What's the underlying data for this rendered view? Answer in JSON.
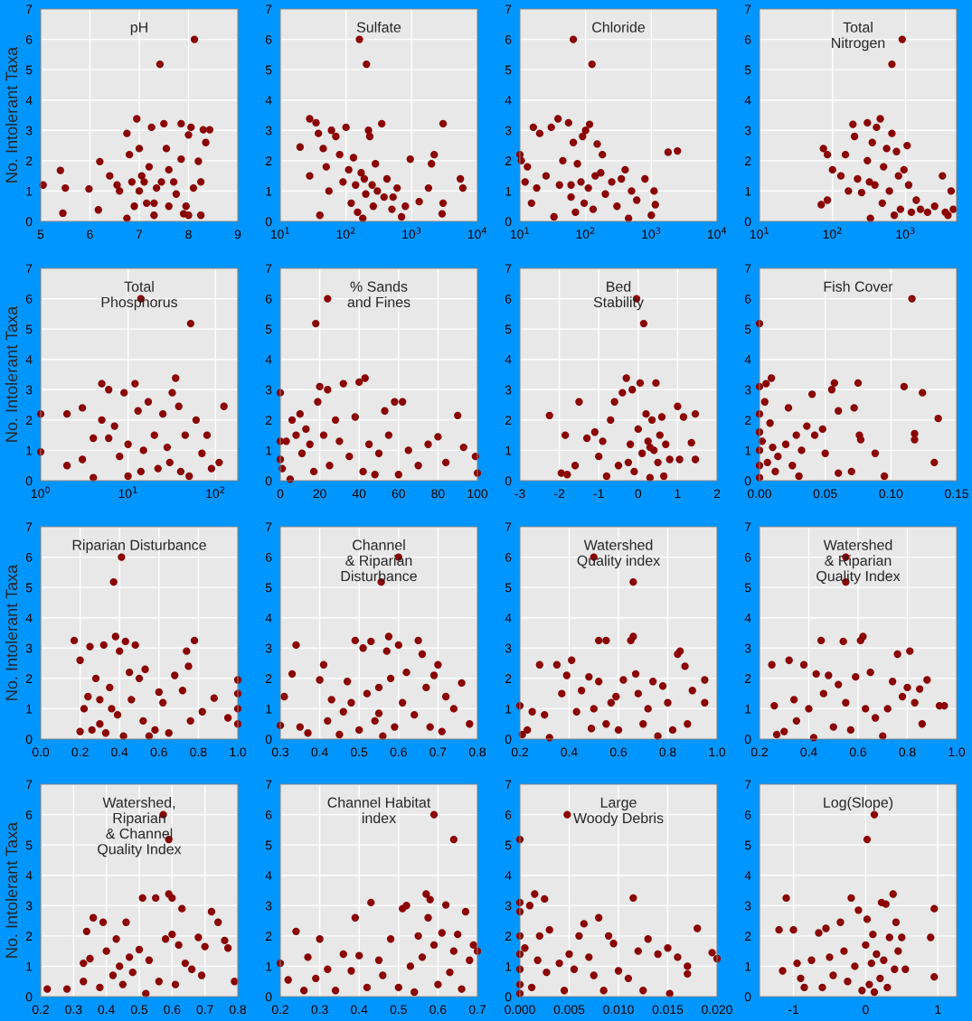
{
  "chart_data": [
    {
      "type": "scatter",
      "title": "pH",
      "ylabel": "No. Intolerant Taxa",
      "marker": "circle",
      "grid": true,
      "xlim": [
        5,
        9
      ],
      "xticks": [
        5,
        6,
        7,
        8,
        9
      ],
      "ylim": [
        0,
        7
      ],
      "yticks": [
        0,
        1,
        2,
        3,
        4,
        5,
        6,
        7
      ],
      "series": [
        {
          "color": "#8b0000",
          "x": [
            8.12,
            7.42,
            5.05,
            5.4,
            5.45,
            5.5,
            5.98,
            6.2,
            6.17,
            6.4,
            6.55,
            6.6,
            6.75,
            6.8,
            6.85,
            6.75,
            6.95,
            7.0,
            7.05,
            7.1,
            7.15,
            7.2,
            7.25,
            7.3,
            7.35,
            7.45,
            7.5,
            7.55,
            7.6,
            7.7,
            7.75,
            7.85,
            7.85,
            7.9,
            7.95,
            8.0,
            8.05,
            8.1,
            8.2,
            8.25,
            8.3,
            8.43,
            8.35,
            8.0,
            7.3,
            7.0,
            6.9,
            7.6,
            8.25
          ],
          "values": [
            6,
            5.18,
            1.2,
            1.68,
            0.27,
            1.1,
            1.07,
            1.97,
            0.38,
            1.5,
            1.2,
            1.0,
            2.9,
            2.2,
            1.3,
            0.1,
            3.38,
            2.4,
            1.5,
            1.3,
            0.6,
            1.8,
            3.1,
            0.2,
            1.1,
            1.3,
            3.22,
            2.4,
            0.5,
            1.3,
            0.9,
            3.22,
            2.05,
            0.25,
            0.5,
            2.85,
            3.1,
            1.1,
            1.98,
            0.2,
            3.02,
            3.02,
            2.6,
            0.2,
            0.6,
            1.0,
            0.5,
            1.7,
            1.3
          ]
        }
      ]
    },
    {
      "type": "scatter",
      "title": "Sulfate",
      "marker": "circle",
      "grid": true,
      "log": "x",
      "xlim": [
        10,
        10000
      ],
      "xticks": [
        {
          "value": 10,
          "label": "10$^{1}$"
        },
        {
          "value": 100,
          "label": "10$^{2}$"
        },
        {
          "value": 1000,
          "label": "10$^{3}$"
        },
        {
          "value": 10000,
          "label": "10$^{4}$"
        }
      ],
      "ylim": [
        0,
        7
      ],
      "yticks": [
        0,
        1,
        2,
        3,
        4,
        5,
        6,
        7
      ],
      "series": [
        {
          "color": "#8b0000",
          "x": [
            160,
            205,
            20,
            28,
            28,
            35,
            38,
            40,
            45,
            50,
            55,
            60,
            70,
            80,
            90,
            100,
            110,
            120,
            130,
            140,
            150,
            170,
            190,
            200,
            220,
            230,
            250,
            260,
            280,
            300,
            350,
            380,
            420,
            500,
            600,
            700,
            800,
            950,
            1300,
            1800,
            2000,
            2200,
            3000,
            3000,
            2900,
            5500,
            6000,
            520,
            180
          ],
          "values": [
            6,
            5.18,
            2.45,
            3.38,
            1.5,
            3.25,
            2.9,
            0.2,
            2.4,
            1.8,
            1.0,
            3.0,
            2.8,
            2.2,
            1.3,
            3.1,
            1.7,
            0.6,
            2.1,
            1.2,
            0.3,
            1.6,
            1.4,
            0.9,
            3.0,
            2.8,
            1.2,
            0.5,
            1.9,
            1.0,
            3.22,
            0.8,
            1.4,
            0.4,
            1.1,
            0.15,
            0.5,
            2.05,
            0.65,
            1.1,
            1.9,
            2.2,
            3.22,
            0.6,
            0.25,
            1.4,
            1.1,
            0.8,
            0.1
          ]
        }
      ]
    },
    {
      "type": "scatter",
      "title": "Chloride",
      "marker": "circle",
      "grid": true,
      "log": "x",
      "xlim": [
        10,
        10000
      ],
      "xticks": [
        {
          "value": 10,
          "label": "10$^{1}$"
        },
        {
          "value": 100,
          "label": "10$^{2}$"
        },
        {
          "value": 1000,
          "label": "10$^{3}$"
        },
        {
          "value": 10000,
          "label": "10$^{4}$"
        }
      ],
      "ylim": [
        0,
        7
      ],
      "yticks": [
        0,
        1,
        2,
        3,
        4,
        5,
        6,
        7
      ],
      "series": [
        {
          "color": "#8b0000",
          "x": [
            65,
            125,
            10,
            10.5,
            12,
            13,
            15,
            16,
            18,
            20,
            25,
            30,
            33,
            38,
            40,
            45,
            55,
            60,
            65,
            70,
            75,
            85,
            90,
            95,
            100,
            110,
            115,
            130,
            150,
            170,
            180,
            200,
            250,
            300,
            350,
            400,
            450,
            500,
            600,
            800,
            1000,
            1100,
            1150,
            1800,
            2500,
            140,
            60
          ],
          "values": [
            6,
            5.18,
            2.2,
            2.0,
            1.3,
            1.8,
            0.6,
            3.1,
            1.1,
            2.9,
            1.5,
            3.1,
            0.15,
            3.38,
            1.2,
            2.0,
            3.25,
            1.2,
            2.6,
            0.3,
            1.9,
            1.3,
            2.8,
            0.6,
            3.0,
            1.1,
            3.2,
            0.4,
            2.55,
            1.6,
            2.2,
            0.9,
            1.3,
            0.5,
            1.4,
            1.7,
            0.1,
            1.0,
            0.7,
            1.4,
            0.2,
            1.0,
            0.55,
            2.28,
            2.32,
            1.5,
            0.8
          ]
        }
      ]
    },
    {
      "type": "scatter",
      "title": "Total\nNitrogen",
      "marker": "circle",
      "grid": true,
      "log": "x",
      "xlim": [
        10,
        5000
      ],
      "xticks": [
        {
          "value": 10,
          "label": "10$^{1}$"
        },
        {
          "value": 100,
          "label": "10$^{2}$"
        },
        {
          "value": 1000,
          "label": "10$^{3}$"
        }
      ],
      "ylim": [
        0,
        7
      ],
      "yticks": [
        0,
        1,
        2,
        3,
        4,
        5,
        6,
        7
      ],
      "series": [
        {
          "color": "#8b0000",
          "x": [
            900,
            650,
            70,
            75,
            85,
            85,
            100,
            130,
            150,
            165,
            190,
            200,
            220,
            250,
            300,
            300,
            320,
            330,
            350,
            380,
            400,
            450,
            480,
            500,
            550,
            600,
            650,
            700,
            750,
            800,
            850,
            950,
            1050,
            1100,
            1200,
            1400,
            1600,
            2000,
            2500,
            3200,
            3500,
            4200,
            4500,
            3800
          ],
          "values": [
            6,
            5.18,
            0.55,
            2.4,
            2.2,
            0.7,
            1.7,
            1.5,
            2.2,
            1.0,
            3.2,
            2.8,
            1.4,
            0.95,
            3.25,
            2.0,
            1.3,
            0.1,
            2.6,
            1.2,
            3.1,
            3.38,
            0.6,
            1.8,
            2.4,
            1.0,
            2.9,
            0.2,
            2.3,
            1.5,
            0.4,
            1.7,
            2.5,
            1.2,
            0.3,
            0.7,
            0.4,
            0.3,
            0.5,
            1.5,
            0.3,
            1.0,
            0.4,
            0.2
          ]
        }
      ]
    },
    {
      "type": "scatter",
      "title": "Total\nPhosphorus",
      "ylabel": "No. Intolerant Taxa",
      "marker": "circle",
      "grid": true,
      "log": "x",
      "xlim": [
        1,
        180
      ],
      "xticks": [
        {
          "value": 1,
          "label": "10$^{0}$"
        },
        {
          "value": 10,
          "label": "10$^{1}$"
        },
        {
          "value": 100,
          "label": "10$^{2}$"
        }
      ],
      "ylim": [
        0,
        7
      ],
      "yticks": [
        0,
        1,
        2,
        3,
        4,
        5,
        6,
        7
      ],
      "series": [
        {
          "color": "#8b0000",
          "x": [
            14,
            52,
            1,
            1,
            2,
            2,
            3,
            3,
            4,
            4,
            5,
            5,
            6,
            6,
            7,
            8,
            9,
            10,
            10,
            12,
            13,
            14,
            15,
            17,
            20,
            22,
            25,
            28,
            32,
            35,
            38,
            40,
            45,
            50,
            60,
            70,
            80,
            90,
            110,
            125,
            30
          ],
          "values": [
            6,
            5.18,
            2.2,
            0.95,
            2.2,
            0.5,
            2.4,
            0.7,
            1.4,
            0.1,
            3.2,
            2.0,
            3.0,
            1.4,
            1.8,
            0.8,
            2.9,
            1.2,
            0.15,
            3.2,
            2.3,
            0.3,
            1.0,
            2.6,
            1.5,
            0.4,
            2.2,
            1.1,
            2.9,
            3.38,
            2.45,
            0.3,
            1.5,
            0.15,
            2.0,
            0.9,
            1.5,
            0.4,
            0.6,
            2.45,
            0.6
          ]
        }
      ]
    },
    {
      "type": "scatter",
      "title": "% Sands\nand Fines",
      "marker": "circle",
      "grid": true,
      "xlim": [
        0,
        100
      ],
      "xticks": [
        0,
        20,
        40,
        60,
        80,
        100
      ],
      "ylim": [
        0,
        7
      ],
      "yticks": [
        0,
        1,
        2,
        3,
        4,
        5,
        6,
        7
      ],
      "series": [
        {
          "color": "#8b0000",
          "x": [
            24,
            18,
            0,
            0,
            0,
            1,
            3,
            5,
            6,
            8,
            10,
            11,
            13,
            15,
            17,
            19,
            20,
            22,
            24,
            25,
            28,
            30,
            32,
            35,
            38,
            40,
            43,
            45,
            48,
            50,
            53,
            55,
            58,
            60,
            62,
            65,
            70,
            75,
            80,
            84,
            90,
            93,
            99,
            100,
            42
          ],
          "values": [
            6,
            5.18,
            2.9,
            1.3,
            0.7,
            0.4,
            1.3,
            0.05,
            2.0,
            1.5,
            2.2,
            0.9,
            1.7,
            1.2,
            0.3,
            2.6,
            3.1,
            1.5,
            3.0,
            0.5,
            2.0,
            1.3,
            3.2,
            0.8,
            2.1,
            3.25,
            3.38,
            1.2,
            0.2,
            0.9,
            2.3,
            1.5,
            2.6,
            0.2,
            2.6,
            1.0,
            0.5,
            1.2,
            1.45,
            0.6,
            2.15,
            1.1,
            0.8,
            0.25,
            0.3
          ]
        }
      ]
    },
    {
      "type": "scatter",
      "title": "Bed\nStability",
      "marker": "circle",
      "grid": true,
      "xlim": [
        -3,
        2
      ],
      "xticks": [
        -3,
        -2,
        -1,
        0,
        1,
        2
      ],
      "ylim": [
        0,
        7
      ],
      "yticks": [
        0,
        1,
        2,
        3,
        4,
        5,
        6,
        7
      ],
      "series": [
        {
          "color": "#8b0000",
          "x": [
            -0.04,
            0.14,
            -2.25,
            -1.95,
            -1.85,
            -1.8,
            -1.6,
            -1.5,
            -1.3,
            -1.1,
            -1.0,
            -0.9,
            -0.8,
            -0.7,
            -0.6,
            -0.5,
            -0.4,
            -0.3,
            -0.2,
            -0.15,
            -0.1,
            0,
            0.05,
            0.1,
            0.2,
            0.25,
            0.3,
            0.35,
            0.4,
            0.45,
            0.5,
            0.55,
            0.6,
            0.65,
            0.7,
            0.8,
            1.0,
            1.05,
            1.15,
            1.35,
            1.45,
            1.45,
            -0.25,
            0.3
          ],
          "values": [
            6,
            5.18,
            2.15,
            0.25,
            1.5,
            0.2,
            0.5,
            2.6,
            1.4,
            1.6,
            0.8,
            1.3,
            0.15,
            2.0,
            2.6,
            0.5,
            2.9,
            3.38,
            1.2,
            3.0,
            0.3,
            1.7,
            3.22,
            0.9,
            2.2,
            1.3,
            0.1,
            2.0,
            1.0,
            3.22,
            0.6,
            1.5,
            2.1,
            0.15,
            1.2,
            0.7,
            2.45,
            0.7,
            2.1,
            1.25,
            2.2,
            0.7,
            0.6,
            1.1
          ]
        }
      ]
    },
    {
      "type": "scatter",
      "title": "Fish Cover",
      "marker": "circle",
      "grid": true,
      "xlim": [
        0,
        0.15
      ],
      "xticks": [
        {
          "value": 0,
          "label": "0.00"
        },
        {
          "value": 0.05,
          "label": "0.05"
        },
        {
          "value": 0.1,
          "label": "0.10"
        },
        {
          "value": 0.15,
          "label": "0.15"
        }
      ],
      "ylim": [
        0,
        7
      ],
      "yticks": [
        0,
        1,
        2,
        3,
        4,
        5,
        6,
        7
      ],
      "series": [
        {
          "color": "#8b0000",
          "x": [
            0.116,
            0,
            0,
            0,
            0,
            0,
            0,
            0,
            0.002,
            0.004,
            0.005,
            0.006,
            0.008,
            0.009,
            0.01,
            0.012,
            0.014,
            0.02,
            0.022,
            0.025,
            0.028,
            0.03,
            0.032,
            0.036,
            0.04,
            0.042,
            0.048,
            0.05,
            0.055,
            0.057,
            0.06,
            0.06,
            0.07,
            0.072,
            0.075,
            0.076,
            0.077,
            0.088,
            0.095,
            0.11,
            0.118,
            0.124,
            0.133,
            0.136,
            0.118
          ],
          "values": [
            6,
            5.18,
            3.1,
            2.2,
            1.6,
            1.0,
            0.5,
            0.1,
            1.3,
            2.6,
            3.2,
            0.6,
            1.9,
            3.38,
            1.1,
            0.3,
            0.8,
            1.2,
            2.4,
            0.5,
            1.5,
            0.15,
            1.0,
            1.8,
            2.85,
            1.5,
            1.7,
            0.9,
            3.0,
            3.22,
            2.3,
            0.25,
            0.3,
            2.4,
            3.22,
            1.5,
            1.35,
            0.9,
            0.15,
            3.1,
            1.55,
            2.9,
            0.6,
            2.05,
            1.35
          ]
        }
      ]
    },
    {
      "type": "scatter",
      "title": "Riparian Disturbance",
      "ylabel": "No. Intolerant Taxa",
      "marker": "circle",
      "grid": true,
      "xlim": [
        0,
        1
      ],
      "xticks": [
        {
          "value": 0,
          "label": "0.0"
        },
        {
          "value": 0.2,
          "label": "0.2"
        },
        {
          "value": 0.4,
          "label": "0.4"
        },
        {
          "value": 0.6,
          "label": "0.6"
        },
        {
          "value": 0.8,
          "label": "0.8"
        },
        {
          "value": 1,
          "label": "1.0"
        }
      ],
      "ylim": [
        0,
        7
      ],
      "yticks": [
        0,
        1,
        2,
        3,
        4,
        5,
        6,
        7
      ],
      "series": [
        {
          "color": "#8b0000",
          "x": [
            0.41,
            0.37,
            0.17,
            0.2,
            0.2,
            0.22,
            0.24,
            0.25,
            0.26,
            0.28,
            0.3,
            0.32,
            0.33,
            0.35,
            0.38,
            0.39,
            0.4,
            0.42,
            0.43,
            0.45,
            0.46,
            0.48,
            0.5,
            0.52,
            0.53,
            0.55,
            0.58,
            0.6,
            0.62,
            0.65,
            0.68,
            0.72,
            0.74,
            0.75,
            0.76,
            0.78,
            0.82,
            0.88,
            0.95,
            1.0,
            1.0,
            1.0,
            1.0,
            0.36,
            0.3
          ],
          "values": [
            6,
            5.18,
            3.25,
            0.25,
            2.6,
            1.0,
            1.4,
            3.05,
            0.3,
            2.0,
            1.3,
            3.1,
            0.2,
            1.7,
            3.38,
            0.8,
            2.9,
            0.1,
            3.22,
            2.2,
            1.3,
            3.1,
            2.0,
            0.6,
            2.3,
            0.1,
            0.3,
            1.55,
            1.2,
            0.2,
            2.1,
            1.6,
            2.9,
            2.4,
            0.6,
            3.25,
            0.9,
            1.35,
            0.7,
            1.95,
            1.5,
            1.0,
            0.5,
            1.0,
            0.5
          ]
        }
      ]
    },
    {
      "type": "scatter",
      "title": "Channel\n& Riparian\nDisturbance",
      "marker": "circle",
      "grid": true,
      "xlim": [
        0.3,
        0.8
      ],
      "xticks": [
        {
          "value": 0.3,
          "label": "0.3"
        },
        {
          "value": 0.4,
          "label": "0.4"
        },
        {
          "value": 0.5,
          "label": "0.5"
        },
        {
          "value": 0.6,
          "label": "0.6"
        },
        {
          "value": 0.7,
          "label": "0.7"
        },
        {
          "value": 0.8,
          "label": "0.8"
        }
      ],
      "ylim": [
        0,
        7
      ],
      "yticks": [
        0,
        1,
        2,
        3,
        4,
        5,
        6,
        7
      ],
      "series": [
        {
          "color": "#8b0000",
          "x": [
            0.6,
            0.556,
            0.3,
            0.31,
            0.33,
            0.34,
            0.35,
            0.37,
            0.4,
            0.41,
            0.42,
            0.43,
            0.45,
            0.46,
            0.47,
            0.48,
            0.49,
            0.5,
            0.51,
            0.52,
            0.53,
            0.54,
            0.55,
            0.56,
            0.57,
            0.575,
            0.58,
            0.59,
            0.6,
            0.61,
            0.62,
            0.64,
            0.65,
            0.66,
            0.67,
            0.68,
            0.69,
            0.7,
            0.71,
            0.72,
            0.74,
            0.76,
            0.78,
            0.55
          ],
          "values": [
            6,
            5.18,
            0.45,
            1.4,
            2.15,
            3.1,
            0.4,
            0.2,
            1.95,
            2.45,
            0.6,
            1.3,
            0.15,
            0.9,
            1.9,
            1.2,
            3.25,
            0.3,
            3.0,
            1.5,
            3.22,
            0.6,
            1.7,
            0.1,
            2.9,
            3.38,
            2.0,
            0.4,
            3.1,
            1.2,
            2.2,
            0.8,
            3.25,
            2.8,
            1.7,
            0.4,
            2.1,
            2.45,
            0.25,
            1.4,
            1.0,
            1.85,
            0.5,
            0.85
          ]
        }
      ]
    },
    {
      "type": "scatter",
      "title": "Watershed\nQuality index",
      "marker": "circle",
      "grid": true,
      "xlim": [
        0.2,
        1
      ],
      "xticks": [
        {
          "value": 0.2,
          "label": "0.2"
        },
        {
          "value": 0.4,
          "label": "0.4"
        },
        {
          "value": 0.6,
          "label": "0.6"
        },
        {
          "value": 0.8,
          "label": "0.8"
        },
        {
          "value": 1,
          "label": "1.0"
        }
      ],
      "ylim": [
        0,
        7
      ],
      "yticks": [
        0,
        1,
        2,
        3,
        4,
        5,
        6,
        7
      ],
      "series": [
        {
          "color": "#8b0000",
          "x": [
            0.5,
            0.66,
            0.2,
            0.21,
            0.23,
            0.25,
            0.28,
            0.3,
            0.32,
            0.35,
            0.37,
            0.39,
            0.41,
            0.43,
            0.45,
            0.48,
            0.49,
            0.5,
            0.52,
            0.52,
            0.55,
            0.55,
            0.57,
            0.59,
            0.6,
            0.62,
            0.65,
            0.66,
            0.67,
            0.68,
            0.7,
            0.72,
            0.74,
            0.76,
            0.78,
            0.8,
            0.82,
            0.84,
            0.85,
            0.87,
            0.88,
            0.9,
            0.95,
            0.95
          ],
          "values": [
            6,
            5.18,
            1.1,
            0.15,
            0.3,
            0.9,
            2.45,
            0.8,
            0.05,
            2.45,
            1.5,
            2.1,
            2.6,
            0.9,
            1.6,
            2.05,
            0.35,
            1.0,
            1.9,
            3.25,
            3.25,
            0.5,
            1.2,
            1.4,
            0.3,
            1.95,
            3.25,
            3.38,
            2.15,
            1.5,
            0.5,
            1.0,
            1.9,
            0.1,
            1.75,
            1.2,
            0.3,
            2.8,
            2.9,
            2.4,
            0.5,
            1.6,
            1.95,
            1.2
          ]
        }
      ]
    },
    {
      "type": "scatter",
      "title": "Watershed\n& Riparian\nQuality Index",
      "marker": "circle",
      "grid": true,
      "xlim": [
        0.2,
        1
      ],
      "xticks": [
        {
          "value": 0.2,
          "label": "0.2"
        },
        {
          "value": 0.4,
          "label": "0.4"
        },
        {
          "value": 0.6,
          "label": "0.6"
        },
        {
          "value": 0.8,
          "label": "0.8"
        },
        {
          "value": 1,
          "label": "1.0"
        }
      ],
      "ylim": [
        0,
        7
      ],
      "yticks": [
        0,
        1,
        2,
        3,
        4,
        5,
        6,
        7
      ],
      "series": [
        {
          "color": "#8b0000",
          "x": [
            0.55,
            0.55,
            0.25,
            0.26,
            0.27,
            0.3,
            0.32,
            0.34,
            0.35,
            0.38,
            0.4,
            0.42,
            0.43,
            0.45,
            0.46,
            0.48,
            0.5,
            0.52,
            0.54,
            0.55,
            0.57,
            0.59,
            0.61,
            0.62,
            0.63,
            0.65,
            0.67,
            0.7,
            0.72,
            0.74,
            0.76,
            0.78,
            0.8,
            0.81,
            0.83,
            0.85,
            0.86,
            0.88,
            0.93,
            0.95
          ],
          "values": [
            6,
            5.18,
            2.45,
            1.1,
            0.15,
            0.25,
            2.6,
            1.3,
            0.6,
            2.45,
            1.0,
            0.05,
            2.15,
            3.25,
            1.5,
            2.1,
            0.4,
            1.8,
            3.22,
            1.2,
            0.3,
            2.05,
            3.25,
            3.38,
            1.0,
            2.2,
            0.7,
            0.1,
            1.0,
            1.9,
            2.8,
            1.4,
            1.7,
            2.9,
            1.2,
            1.65,
            0.5,
            1.95,
            1.1,
            1.1
          ]
        }
      ]
    },
    {
      "type": "scatter",
      "title": "Watershed,\nRiparian\n& Channel\nQuality Index",
      "ylabel": "No. Intolerant Taxa",
      "marker": "circle",
      "grid": true,
      "xlim": [
        0.2,
        0.8
      ],
      "xticks": [
        {
          "value": 0.2,
          "label": "0.2"
        },
        {
          "value": 0.3,
          "label": "0.3"
        },
        {
          "value": 0.4,
          "label": "0.4"
        },
        {
          "value": 0.5,
          "label": "0.5"
        },
        {
          "value": 0.6,
          "label": "0.6"
        },
        {
          "value": 0.7,
          "label": "0.7"
        },
        {
          "value": 0.8,
          "label": "0.8"
        }
      ],
      "ylim": [
        0,
        7
      ],
      "yticks": [
        0,
        1,
        2,
        3,
        4,
        5,
        6,
        7
      ],
      "series": [
        {
          "color": "#8b0000",
          "x": [
            0.573,
            0.59,
            0.22,
            0.28,
            0.33,
            0.33,
            0.34,
            0.35,
            0.36,
            0.38,
            0.39,
            0.4,
            0.42,
            0.43,
            0.44,
            0.45,
            0.46,
            0.47,
            0.48,
            0.5,
            0.51,
            0.52,
            0.53,
            0.55,
            0.56,
            0.58,
            0.59,
            0.6,
            0.6,
            0.61,
            0.62,
            0.63,
            0.64,
            0.66,
            0.68,
            0.69,
            0.7,
            0.72,
            0.74,
            0.76,
            0.77,
            0.79
          ],
          "values": [
            6,
            5.18,
            0.25,
            0.25,
            1.1,
            0.5,
            2.15,
            1.25,
            2.6,
            0.3,
            2.45,
            1.5,
            0.7,
            1.9,
            1.0,
            0.4,
            2.45,
            1.3,
            0.8,
            1.55,
            3.25,
            0.1,
            1.2,
            3.25,
            0.5,
            1.9,
            3.38,
            2.05,
            3.25,
            0.4,
            1.7,
            2.9,
            1.1,
            0.9,
            1.95,
            0.7,
            1.65,
            2.8,
            2.45,
            1.85,
            1.6,
            0.5
          ]
        }
      ]
    },
    {
      "type": "scatter",
      "title": "Channel Habitat\nindex",
      "marker": "circle",
      "grid": true,
      "xlim": [
        0.2,
        0.7
      ],
      "xticks": [
        {
          "value": 0.2,
          "label": "0.2"
        },
        {
          "value": 0.3,
          "label": "0.3"
        },
        {
          "value": 0.4,
          "label": "0.4"
        },
        {
          "value": 0.5,
          "label": "0.5"
        },
        {
          "value": 0.6,
          "label": "0.6"
        },
        {
          "value": 0.7,
          "label": "0.7"
        }
      ],
      "ylim": [
        0,
        7
      ],
      "yticks": [
        0,
        1,
        2,
        3,
        4,
        5,
        6,
        7
      ],
      "series": [
        {
          "color": "#8b0000",
          "x": [
            0.59,
            0.64,
            0.2,
            0.22,
            0.24,
            0.26,
            0.27,
            0.29,
            0.3,
            0.32,
            0.34,
            0.36,
            0.38,
            0.39,
            0.4,
            0.42,
            0.43,
            0.45,
            0.46,
            0.48,
            0.5,
            0.51,
            0.52,
            0.53,
            0.54,
            0.55,
            0.56,
            0.57,
            0.575,
            0.58,
            0.59,
            0.6,
            0.61,
            0.62,
            0.63,
            0.64,
            0.65,
            0.66,
            0.67,
            0.68,
            0.69,
            0.7
          ],
          "values": [
            6,
            5.18,
            1.1,
            0.55,
            2.15,
            0.2,
            1.3,
            0.6,
            1.9,
            0.9,
            0.2,
            1.4,
            0.85,
            2.6,
            1.35,
            0.3,
            3.1,
            1.2,
            0.7,
            1.9,
            0.3,
            2.9,
            3.0,
            1.0,
            0.15,
            2.0,
            1.3,
            3.38,
            2.6,
            3.2,
            1.7,
            0.4,
            2.1,
            3.02,
            0.8,
            1.5,
            2.05,
            0.25,
            2.8,
            1.2,
            1.7,
            1.5
          ]
        }
      ]
    },
    {
      "type": "scatter",
      "title": "Large\nWoody Debris",
      "marker": "circle",
      "grid": true,
      "xlim": [
        0,
        0.02
      ],
      "xticks": [
        {
          "value": 0,
          "label": "0.000"
        },
        {
          "value": 0.005,
          "label": "0.005"
        },
        {
          "value": 0.01,
          "label": "0.010"
        },
        {
          "value": 0.015,
          "label": "0.015"
        },
        {
          "value": 0.02,
          "label": "0.020"
        }
      ],
      "ylim": [
        0,
        7
      ],
      "yticks": [
        0,
        1,
        2,
        3,
        4,
        5,
        6,
        7
      ],
      "series": [
        {
          "color": "#8b0000",
          "x": [
            0.0048,
            0,
            0,
            0,
            0,
            0,
            0,
            0,
            0,
            0.0005,
            0.001,
            0.0012,
            0.0015,
            0.0018,
            0.002,
            0.0025,
            0.0027,
            0.003,
            0.004,
            0.0045,
            0.005,
            0.0055,
            0.006,
            0.0065,
            0.007,
            0.0075,
            0.008,
            0.0085,
            0.009,
            0.0095,
            0.01,
            0.011,
            0.0115,
            0.012,
            0.0125,
            0.013,
            0.014,
            0.015,
            0.0152,
            0.016,
            0.017,
            0.017,
            0.018,
            0.0195,
            0.02
          ],
          "values": [
            6,
            5.18,
            3.1,
            2.8,
            2.0,
            1.4,
            0.9,
            0.4,
            0.1,
            1.6,
            3.0,
            0.3,
            3.38,
            1.2,
            2.0,
            3.22,
            0.8,
            2.2,
            1.1,
            0.2,
            1.4,
            0.9,
            2.0,
            2.4,
            1.3,
            0.7,
            2.6,
            0.2,
            2.0,
            1.75,
            0.85,
            0.6,
            3.25,
            1.5,
            0.2,
            1.9,
            1.4,
            1.6,
            0.1,
            1.3,
            1.0,
            0.75,
            2.25,
            1.45,
            1.25
          ]
        }
      ]
    },
    {
      "type": "scatter",
      "title": "Log(Slope)",
      "marker": "circle",
      "grid": true,
      "xlim": [
        -1.47,
        1.26
      ],
      "xticks": [
        -1,
        0,
        1
      ],
      "ylim": [
        0,
        7
      ],
      "yticks": [
        0,
        1,
        2,
        3,
        4,
        5,
        6,
        7
      ],
      "series": [
        {
          "color": "#8b0000",
          "x": [
            0.12,
            0.02,
            -1.2,
            -1.15,
            -1.1,
            -1.0,
            -0.95,
            -0.9,
            -0.85,
            -0.75,
            -0.65,
            -0.6,
            -0.55,
            -0.5,
            -0.45,
            -0.35,
            -0.3,
            -0.25,
            -0.2,
            -0.15,
            -0.1,
            -0.05,
            0.0,
            0.02,
            0.05,
            0.08,
            0.1,
            0.12,
            0.15,
            0.2,
            0.22,
            0.25,
            0.28,
            0.3,
            0.33,
            0.38,
            0.4,
            0.42,
            0.45,
            0.5,
            0.55,
            0.9,
            0.95,
            0.95
          ],
          "values": [
            6,
            5.18,
            2.2,
            0.85,
            3.25,
            2.2,
            1.1,
            0.6,
            0.3,
            1.2,
            2.1,
            0.3,
            2.25,
            1.3,
            0.7,
            2.45,
            1.5,
            0.5,
            3.25,
            1.0,
            2.85,
            0.2,
            1.7,
            2.55,
            0.4,
            1.1,
            2.05,
            0.15,
            1.4,
            0.6,
            3.1,
            1.2,
            3.05,
            0.3,
            1.95,
            3.38,
            0.9,
            2.45,
            1.5,
            1.95,
            0.9,
            1.95,
            2.9,
            0.65
          ]
        }
      ]
    }
  ]
}
